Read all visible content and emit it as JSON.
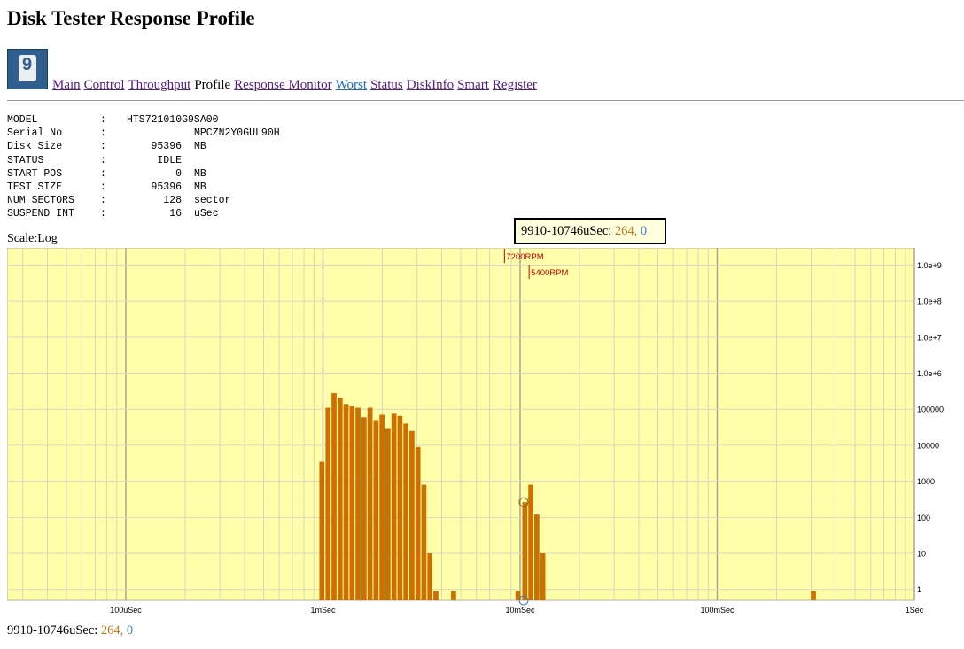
{
  "page": {
    "title": "Disk Tester Response Profile"
  },
  "nav": {
    "icon": "disk-icon",
    "items": [
      {
        "label": "Main",
        "kind": "link"
      },
      {
        "label": "Control",
        "kind": "link"
      },
      {
        "label": "Throughput",
        "kind": "link"
      },
      {
        "label": "Profile",
        "kind": "current"
      },
      {
        "label": "Response Monitor",
        "kind": "link"
      },
      {
        "label": "Worst",
        "kind": "link-blue"
      },
      {
        "label": "Status",
        "kind": "link"
      },
      {
        "label": "DiskInfo",
        "kind": "link"
      },
      {
        "label": "Smart",
        "kind": "link"
      },
      {
        "label": "Register",
        "kind": "link"
      }
    ]
  },
  "info": {
    "colon": ":",
    "rows": [
      {
        "key": "MODEL",
        "value": "HTS721010G9SA00",
        "unit": ""
      },
      {
        "key": "Serial No",
        "value": "MPCZN2Y0GUL90H",
        "unit": ""
      },
      {
        "key": "Disk Size",
        "value": "95396",
        "unit": "MB"
      },
      {
        "key": "STATUS",
        "value": "IDLE",
        "unit": ""
      },
      {
        "key": "START POS",
        "value": "0",
        "unit": "MB"
      },
      {
        "key": "TEST SIZE",
        "value": "95396",
        "unit": "MB"
      },
      {
        "key": "NUM SECTORS",
        "value": "128",
        "unit": "sector"
      },
      {
        "key": "SUSPEND INT",
        "value": "16",
        "unit": "uSec"
      }
    ]
  },
  "scale_label": "Scale:Log",
  "tooltip": {
    "range": "9910-10746uSec:",
    "count": "264",
    "sep": ",",
    "zero": "0"
  },
  "status_line": {
    "range": "9910-10746uSec:",
    "count": "264",
    "sep": ",",
    "zero": "0"
  },
  "colors": {
    "plot_bg": "#ffffaa",
    "bar": "#cc7000",
    "grid_minor": "#d7d7c0",
    "grid_major": "#a0a09a",
    "marker_line": "#cc0000",
    "count_text": "#c07a1a",
    "zero_text": "#3d7fc8"
  },
  "chart_data": {
    "type": "bar",
    "x_scale": "log",
    "y_scale": "log",
    "x_range_usec": [
      25,
      1000000
    ],
    "y_range": [
      0.5,
      3000000000
    ],
    "x_ticks": [
      {
        "value": 100,
        "label": "100uSec"
      },
      {
        "value": 1000,
        "label": "1mSec"
      },
      {
        "value": 10000,
        "label": "10mSec"
      },
      {
        "value": 100000,
        "label": "100mSec"
      },
      {
        "value": 1000000,
        "label": "1Sec"
      }
    ],
    "y_ticks": [
      {
        "value": 1,
        "label": "1"
      },
      {
        "value": 10,
        "label": "10"
      },
      {
        "value": 100,
        "label": "100"
      },
      {
        "value": 1000,
        "label": "1000"
      },
      {
        "value": 10000,
        "label": "10000"
      },
      {
        "value": 100000,
        "label": "100000"
      },
      {
        "value": 1000000,
        "label": "1.0e+6"
      },
      {
        "value": 10000000,
        "label": "1.0e+7"
      },
      {
        "value": 100000000,
        "label": "1.0e+8"
      },
      {
        "value": 1000000000,
        "label": "1.0e+9"
      }
    ],
    "markers": [
      {
        "label": "7200RPM",
        "x_usec": 8333
      },
      {
        "label": "5400RPM",
        "x_usec": 11111
      }
    ],
    "bars": [
      {
        "x_usec": 964,
        "count": 3500
      },
      {
        "x_usec": 1036,
        "count": 110000
      },
      {
        "x_usec": 1111,
        "count": 280000
      },
      {
        "x_usec": 1192,
        "count": 210000
      },
      {
        "x_usec": 1278,
        "count": 140000
      },
      {
        "x_usec": 1371,
        "count": 120000
      },
      {
        "x_usec": 1470,
        "count": 110000
      },
      {
        "x_usec": 1577,
        "count": 60000
      },
      {
        "x_usec": 1691,
        "count": 110000
      },
      {
        "x_usec": 1813,
        "count": 50000
      },
      {
        "x_usec": 1945,
        "count": 70000
      },
      {
        "x_usec": 2086,
        "count": 30000
      },
      {
        "x_usec": 2237,
        "count": 75000
      },
      {
        "x_usec": 2399,
        "count": 65000
      },
      {
        "x_usec": 2573,
        "count": 40000
      },
      {
        "x_usec": 2759,
        "count": 25000
      },
      {
        "x_usec": 2959,
        "count": 9000
      },
      {
        "x_usec": 3173,
        "count": 800
      },
      {
        "x_usec": 3403,
        "count": 10
      },
      {
        "x_usec": 3650,
        "count": 0.9
      },
      {
        "x_usec": 4488,
        "count": 0.9
      },
      {
        "x_usec": 9526,
        "count": 0.9
      },
      {
        "x_usec": 10316,
        "count": 264
      },
      {
        "x_usec": 11063,
        "count": 800
      },
      {
        "x_usec": 11865,
        "count": 120
      },
      {
        "x_usec": 12725,
        "count": 10
      },
      {
        "x_usec": 300000,
        "count": 0.9
      }
    ],
    "highlight": [
      {
        "x_usec": 10316,
        "count": 264
      },
      {
        "x_usec": 10316,
        "count": 0.5
      }
    ]
  }
}
